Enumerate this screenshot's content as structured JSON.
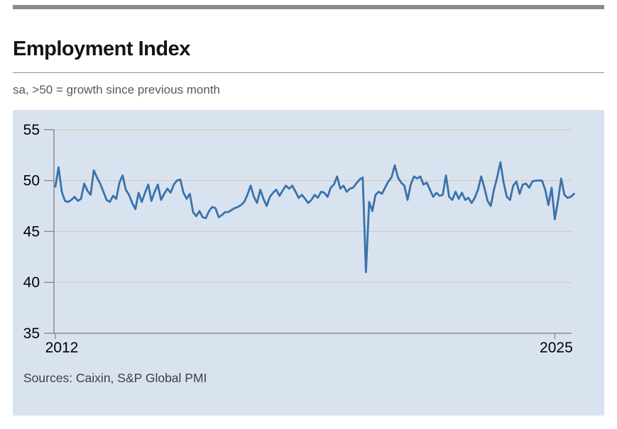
{
  "header": {
    "title": "Employment Index",
    "subtitle": "sa, >50 = growth since previous month"
  },
  "footer": {
    "sources": "Sources: Caixin, S&P Global PMI"
  },
  "chart_data": {
    "type": "line",
    "title": "Employment Index",
    "subtitle": "sa, >50 = growth since previous month",
    "sources": "Sources: Caixin, S&P Global PMI",
    "xlabel": "",
    "ylabel": "",
    "ylim": [
      35,
      55
    ],
    "yticks": [
      35,
      40,
      45,
      50,
      55
    ],
    "xticks": [
      {
        "label": "2012",
        "month_index": 0
      },
      {
        "label": "2025",
        "month_index": 156
      }
    ],
    "grid": "horizontal",
    "legend": "none",
    "colors": {
      "line": "#3a72ab",
      "plot_background": "#d9e3f0",
      "gridline": "#d6cdbb",
      "axis": "#8a8a8a",
      "tick_label": "#000000",
      "sources_text": "#404040",
      "accent_bar": "#8a8a8a"
    },
    "series": [
      {
        "name": "Employment Index",
        "frequency": "monthly",
        "x_start": "2012-01",
        "x_end": "2025-07",
        "values": [
          49.4,
          51.3,
          48.9,
          48.0,
          47.9,
          48.1,
          48.4,
          48.0,
          48.2,
          49.7,
          49.0,
          48.6,
          51.0,
          50.3,
          49.7,
          48.9,
          48.1,
          47.9,
          48.5,
          48.2,
          49.8,
          50.5,
          49.1,
          48.6,
          47.8,
          47.2,
          48.8,
          47.9,
          48.8,
          49.6,
          48.0,
          48.9,
          49.6,
          48.1,
          48.7,
          49.2,
          48.8,
          49.6,
          50.0,
          50.1,
          48.8,
          48.2,
          48.7,
          46.9,
          46.5,
          47.0,
          46.4,
          46.3,
          47.0,
          47.4,
          47.3,
          46.4,
          46.6,
          46.9,
          46.9,
          47.1,
          47.3,
          47.4,
          47.6,
          47.9,
          48.6,
          49.5,
          48.4,
          47.8,
          49.1,
          48.2,
          47.5,
          48.4,
          48.8,
          49.1,
          48.5,
          49.0,
          49.5,
          49.2,
          49.5,
          48.9,
          48.3,
          48.6,
          48.2,
          47.8,
          48.1,
          48.6,
          48.3,
          48.9,
          48.8,
          48.4,
          49.3,
          49.6,
          50.4,
          49.2,
          49.5,
          48.9,
          49.2,
          49.3,
          49.7,
          50.1,
          50.3,
          41.0,
          47.9,
          47.0,
          48.6,
          48.9,
          48.7,
          49.3,
          49.9,
          50.3,
          51.5,
          50.3,
          49.8,
          49.5,
          48.1,
          49.6,
          50.4,
          50.2,
          50.4,
          49.6,
          49.8,
          49.1,
          48.4,
          48.8,
          48.5,
          48.6,
          50.5,
          48.4,
          48.1,
          48.9,
          48.2,
          48.8,
          48.1,
          48.3,
          47.8,
          48.3,
          49.1,
          50.4,
          49.3,
          48.0,
          47.5,
          49.1,
          50.3,
          51.8,
          49.8,
          48.4,
          48.1,
          49.5,
          49.9,
          48.7,
          49.6,
          49.7,
          49.3,
          49.9,
          50.0,
          50.0,
          50.0,
          49.1,
          47.6,
          49.3,
          46.2,
          48.0,
          50.2,
          48.6,
          48.3,
          48.4,
          48.7
        ]
      }
    ]
  }
}
